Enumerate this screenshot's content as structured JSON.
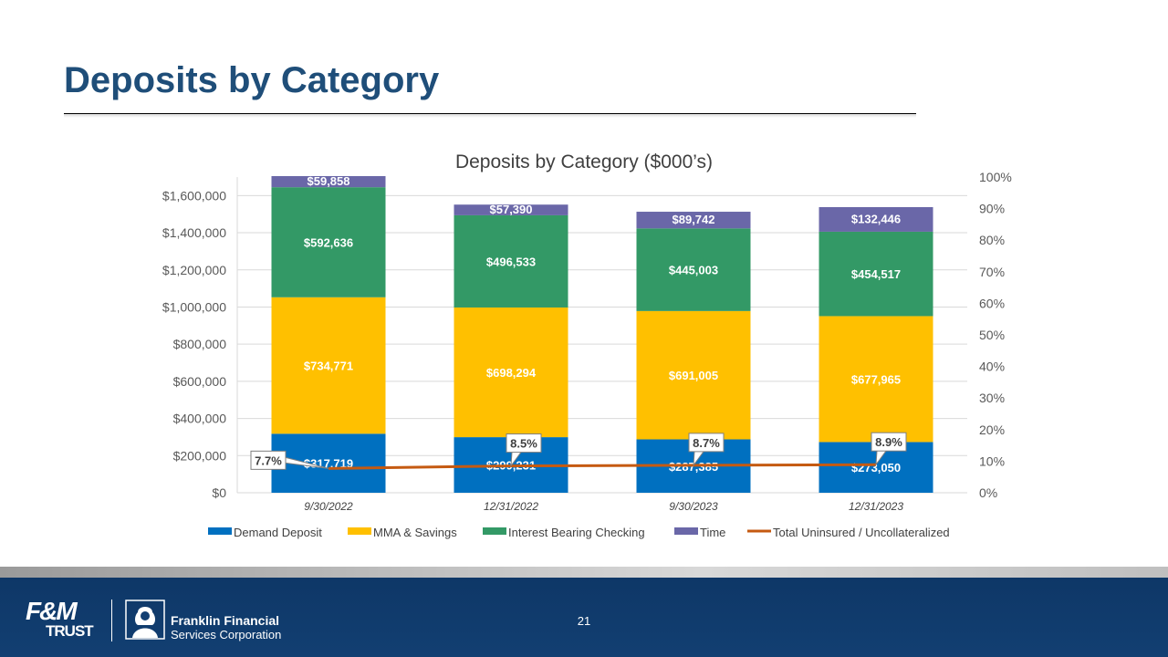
{
  "slide": {
    "title": "Deposits by Category",
    "page_number": "21"
  },
  "footer": {
    "logo_fm_top": "F&M",
    "logo_fm_bottom": "TRUST",
    "logo_ffsc_line1": "Franklin Financial",
    "logo_ffsc_line2": "Services Corporation"
  },
  "colors": {
    "title": "#1f4e79",
    "demand": "#0070c0",
    "mma": "#ffc000",
    "ibc": "#339966",
    "time": "#6a67a8",
    "line": "#c55a11"
  },
  "chart_data": {
    "type": "bar",
    "stacked": true,
    "title": "Deposits by Category ($000’s)",
    "categories": [
      "9/30/2022",
      "12/31/2022",
      "9/30/2023",
      "12/31/2023"
    ],
    "series": [
      {
        "name": "Demand Deposit",
        "color": "#0070c0",
        "values": [
          317719,
          299231,
          287385,
          273050
        ],
        "labels": [
          "$317,719",
          "$299,231",
          "$287,385",
          "$273,050"
        ]
      },
      {
        "name": "MMA & Savings",
        "color": "#ffc000",
        "values": [
          734771,
          698294,
          691005,
          677965
        ],
        "labels": [
          "$734,771",
          "$698,294",
          "$691,005",
          "$677,965"
        ]
      },
      {
        "name": "Interest Bearing Checking",
        "color": "#339966",
        "values": [
          592636,
          496533,
          445003,
          454517
        ],
        "labels": [
          "$592,636",
          "$496,533",
          "$445,003",
          "$454,517"
        ]
      },
      {
        "name": "Time",
        "color": "#6a67a8",
        "values": [
          59858,
          57390,
          89742,
          132446
        ],
        "labels": [
          "$59,858",
          "$57,390",
          "$89,742",
          "$132,446"
        ]
      }
    ],
    "line_series": {
      "name": "Total Uninsured / Uncollateralized",
      "color": "#c55a11",
      "axis": "secondary",
      "values": [
        7.7,
        8.5,
        8.7,
        8.9
      ],
      "labels": [
        "7.7%",
        "8.5%",
        "8.7%",
        "8.9%"
      ]
    },
    "y_primary": {
      "min": 0,
      "max": 1700000,
      "ticks": [
        0,
        200000,
        400000,
        600000,
        800000,
        1000000,
        1200000,
        1400000,
        1600000
      ],
      "tick_labels": [
        "$0",
        "$200,000",
        "$400,000",
        "$600,000",
        "$800,000",
        "$1,000,000",
        "$1,200,000",
        "$1,400,000",
        "$1,600,000"
      ]
    },
    "y_secondary": {
      "min": 0,
      "max": 100,
      "ticks": [
        0,
        10,
        20,
        30,
        40,
        50,
        60,
        70,
        80,
        90,
        100
      ],
      "tick_labels": [
        "0%",
        "10%",
        "20%",
        "30%",
        "40%",
        "50%",
        "60%",
        "70%",
        "80%",
        "90%",
        "100%"
      ]
    },
    "grid": true,
    "legend_position": "bottom"
  }
}
